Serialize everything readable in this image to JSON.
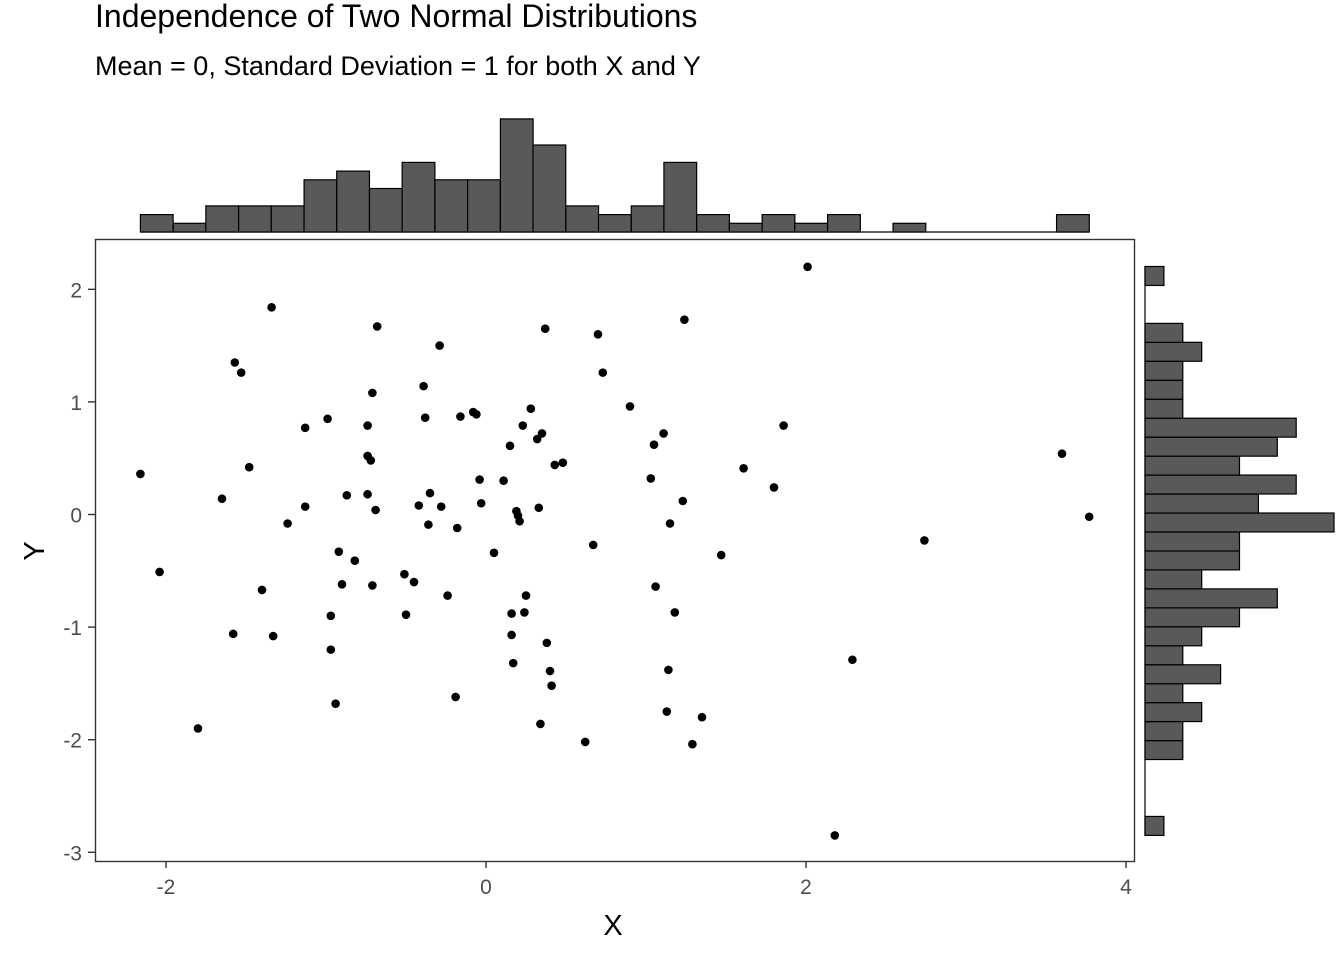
{
  "chart_data": {
    "type": "scatter",
    "title": "Independence of Two Normal Distributions",
    "subtitle": "Mean = 0, Standard Deviation = 1 for both X and Y",
    "xlabel": "X",
    "ylabel": "Y",
    "xlim": [
      -2.45,
      4.0
    ],
    "ylim": [
      -3.05,
      2.38
    ],
    "x_ticks": [
      -2,
      0,
      2,
      4
    ],
    "y_ticks": [
      -3,
      -2,
      -1,
      0,
      1,
      2
    ],
    "grid": false,
    "legend": "none",
    "colors": {
      "points": "#000000",
      "bars": "#595959",
      "bar_outline": "#000000",
      "panel_border": "#333333",
      "ticks": "#4d4d4d"
    },
    "points": [
      [
        -2.16,
        0.36
      ],
      [
        -2.04,
        -0.51
      ],
      [
        -1.8,
        -1.9
      ],
      [
        -1.65,
        0.14
      ],
      [
        -1.58,
        -1.06
      ],
      [
        -1.57,
        1.35
      ],
      [
        -1.53,
        1.26
      ],
      [
        -1.48,
        0.42
      ],
      [
        -1.4,
        -0.67
      ],
      [
        -1.34,
        1.84
      ],
      [
        -1.33,
        -1.08
      ],
      [
        -1.24,
        -0.08
      ],
      [
        -1.13,
        0.77
      ],
      [
        -1.13,
        0.07
      ],
      [
        -0.99,
        0.85
      ],
      [
        -0.97,
        -0.9
      ],
      [
        -0.97,
        -1.2
      ],
      [
        -0.94,
        -1.68
      ],
      [
        -0.92,
        -0.33
      ],
      [
        -0.9,
        -0.62
      ],
      [
        -0.87,
        0.17
      ],
      [
        -0.82,
        -0.41
      ],
      [
        -0.74,
        0.79
      ],
      [
        -0.74,
        0.52
      ],
      [
        -0.74,
        0.18
      ],
      [
        -0.72,
        0.48
      ],
      [
        -0.71,
        1.08
      ],
      [
        -0.71,
        -0.63
      ],
      [
        -0.69,
        0.04
      ],
      [
        -0.68,
        1.67
      ],
      [
        -0.51,
        -0.53
      ],
      [
        -0.5,
        -0.89
      ],
      [
        -0.45,
        -0.6
      ],
      [
        -0.42,
        0.08
      ],
      [
        -0.39,
        1.14
      ],
      [
        -0.38,
        0.86
      ],
      [
        -0.36,
        -0.09
      ],
      [
        -0.35,
        0.19
      ],
      [
        -0.29,
        1.5
      ],
      [
        -0.28,
        0.07
      ],
      [
        -0.24,
        -0.72
      ],
      [
        -0.19,
        -1.62
      ],
      [
        -0.18,
        -0.12
      ],
      [
        -0.16,
        0.87
      ],
      [
        -0.08,
        0.91
      ],
      [
        -0.06,
        0.89
      ],
      [
        -0.04,
        0.31
      ],
      [
        -0.03,
        0.1
      ],
      [
        0.05,
        -0.34
      ],
      [
        0.11,
        0.3
      ],
      [
        0.15,
        0.61
      ],
      [
        0.16,
        -1.07
      ],
      [
        0.16,
        -0.88
      ],
      [
        0.17,
        -1.32
      ],
      [
        0.19,
        0.03
      ],
      [
        0.2,
        -0.01
      ],
      [
        0.21,
        -0.06
      ],
      [
        0.23,
        0.79
      ],
      [
        0.24,
        -0.87
      ],
      [
        0.25,
        -0.72
      ],
      [
        0.28,
        0.94
      ],
      [
        0.32,
        0.67
      ],
      [
        0.33,
        0.06
      ],
      [
        0.34,
        -1.86
      ],
      [
        0.35,
        0.72
      ],
      [
        0.37,
        1.65
      ],
      [
        0.38,
        -1.14
      ],
      [
        0.4,
        -1.39
      ],
      [
        0.41,
        -1.52
      ],
      [
        0.43,
        0.44
      ],
      [
        0.48,
        0.46
      ],
      [
        0.62,
        -2.02
      ],
      [
        0.67,
        -0.27
      ],
      [
        0.7,
        1.6
      ],
      [
        0.73,
        1.26
      ],
      [
        0.9,
        0.96
      ],
      [
        1.03,
        0.32
      ],
      [
        1.05,
        0.62
      ],
      [
        1.06,
        -0.64
      ],
      [
        1.11,
        0.72
      ],
      [
        1.13,
        -1.75
      ],
      [
        1.14,
        -1.38
      ],
      [
        1.15,
        -0.08
      ],
      [
        1.18,
        -0.87
      ],
      [
        1.23,
        0.12
      ],
      [
        1.24,
        1.73
      ],
      [
        1.29,
        -2.04
      ],
      [
        1.35,
        -1.8
      ],
      [
        1.47,
        -0.36
      ],
      [
        1.61,
        0.41
      ],
      [
        1.8,
        0.24
      ],
      [
        1.86,
        0.79
      ],
      [
        2.01,
        2.2
      ],
      [
        2.18,
        -2.85
      ],
      [
        2.29,
        -1.29
      ],
      [
        2.74,
        -0.23
      ],
      [
        3.6,
        0.54
      ],
      [
        3.77,
        -0.02
      ]
    ],
    "x_hist": {
      "bin_width": 0.2045,
      "bins": [
        {
          "x0": -2.16,
          "count": 2
        },
        {
          "x0": -1.955,
          "count": 1
        },
        {
          "x0": -1.751,
          "count": 3
        },
        {
          "x0": -1.546,
          "count": 3
        },
        {
          "x0": -1.342,
          "count": 3
        },
        {
          "x0": -1.137,
          "count": 6
        },
        {
          "x0": -0.933,
          "count": 7
        },
        {
          "x0": -0.728,
          "count": 5
        },
        {
          "x0": -0.524,
          "count": 8
        },
        {
          "x0": -0.319,
          "count": 6
        },
        {
          "x0": -0.115,
          "count": 6
        },
        {
          "x0": 0.09,
          "count": 13
        },
        {
          "x0": 0.294,
          "count": 10
        },
        {
          "x0": 0.499,
          "count": 3
        },
        {
          "x0": 0.703,
          "count": 2
        },
        {
          "x0": 0.908,
          "count": 3
        },
        {
          "x0": 1.112,
          "count": 8
        },
        {
          "x0": 1.317,
          "count": 2
        },
        {
          "x0": 1.521,
          "count": 1
        },
        {
          "x0": 1.726,
          "count": 2
        },
        {
          "x0": 1.93,
          "count": 1
        },
        {
          "x0": 2.135,
          "count": 2
        },
        {
          "x0": 2.339,
          "count": 0
        },
        {
          "x0": 2.544,
          "count": 1
        },
        {
          "x0": 2.748,
          "count": 0
        },
        {
          "x0": 2.953,
          "count": 0
        },
        {
          "x0": 3.157,
          "count": 0
        },
        {
          "x0": 3.362,
          "count": 0
        },
        {
          "x0": 3.566,
          "count": 2
        }
      ]
    },
    "y_hist": {
      "bin_width": 0.1684,
      "bins": [
        {
          "y0": -2.85,
          "count": 1
        },
        {
          "y0": -2.682,
          "count": 0
        },
        {
          "y0": -2.513,
          "count": 0
        },
        {
          "y0": -2.345,
          "count": 0
        },
        {
          "y0": -2.176,
          "count": 2
        },
        {
          "y0": -2.008,
          "count": 2
        },
        {
          "y0": -1.839,
          "count": 3
        },
        {
          "y0": -1.671,
          "count": 2
        },
        {
          "y0": -1.503,
          "count": 4
        },
        {
          "y0": -1.334,
          "count": 2
        },
        {
          "y0": -1.166,
          "count": 3
        },
        {
          "y0": -0.997,
          "count": 5
        },
        {
          "y0": -0.829,
          "count": 7
        },
        {
          "y0": -0.66,
          "count": 3
        },
        {
          "y0": -0.492,
          "count": 5
        },
        {
          "y0": -0.324,
          "count": 5
        },
        {
          "y0": -0.155,
          "count": 10
        },
        {
          "y0": 0.013,
          "count": 6
        },
        {
          "y0": 0.182,
          "count": 8
        },
        {
          "y0": 0.35,
          "count": 5
        },
        {
          "y0": 0.518,
          "count": 7
        },
        {
          "y0": 0.687,
          "count": 8
        },
        {
          "y0": 0.855,
          "count": 2
        },
        {
          "y0": 1.024,
          "count": 2
        },
        {
          "y0": 1.192,
          "count": 2
        },
        {
          "y0": 1.361,
          "count": 3
        },
        {
          "y0": 1.529,
          "count": 2
        },
        {
          "y0": 1.697,
          "count": 0
        },
        {
          "y0": 1.866,
          "count": 0
        },
        {
          "y0": 2.034,
          "count": 1
        }
      ]
    }
  }
}
